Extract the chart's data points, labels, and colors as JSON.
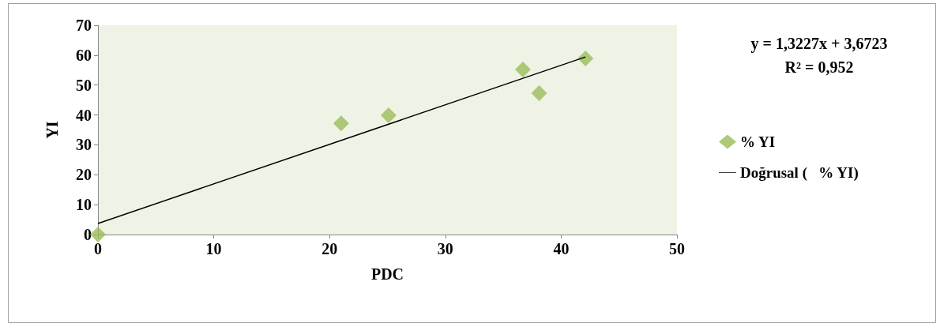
{
  "chart_data": {
    "type": "scatter",
    "xlabel": "PDC",
    "ylabel": "YI",
    "series": [
      {
        "name": "% YI",
        "color": "#9bbb59",
        "x": [
          0,
          21.0,
          25.1,
          36.7,
          38.1,
          42.1
        ],
        "values": [
          0,
          37.2,
          39.9,
          55.2,
          47.3,
          58.9
        ]
      },
      {
        "name": "Doğrusal (   % YI)",
        "type": "line",
        "marker": "none",
        "color": "#000000",
        "x": [
          0,
          42.1
        ],
        "values": [
          3.7,
          59.4
        ]
      }
    ],
    "xlim": [
      0,
      50
    ],
    "xticks": [
      0,
      10,
      20,
      30,
      40,
      50
    ],
    "ylim": [
      0,
      70
    ],
    "yticks": [
      0,
      10,
      20,
      30,
      40,
      50,
      60,
      70
    ],
    "annotations": [
      "y = 1,3227x + 3,6723",
      "R² = 0,952"
    ],
    "marker": "diamond",
    "legend": "right",
    "grid": false
  }
}
